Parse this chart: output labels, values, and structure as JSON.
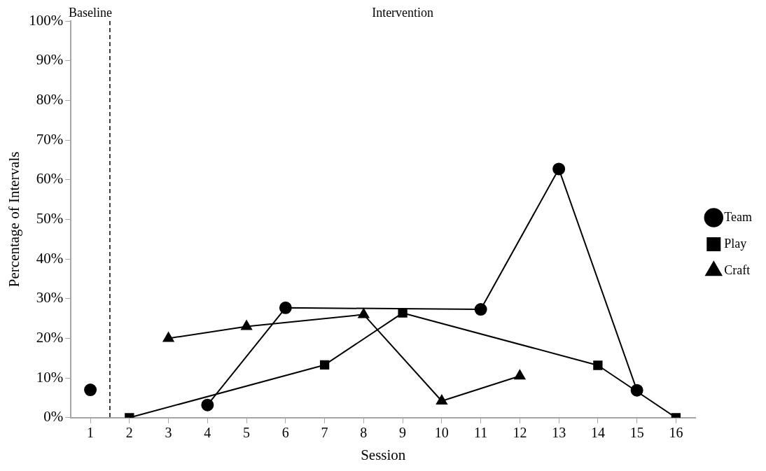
{
  "chart_data": {
    "type": "line",
    "xlabel": "Session",
    "ylabel": "Percentage of Intervals",
    "annotations": [
      "Baseline",
      "Intervention"
    ],
    "xlim": [
      0.5,
      16.5
    ],
    "xticks": [
      1,
      2,
      3,
      4,
      5,
      6,
      7,
      8,
      9,
      10,
      11,
      12,
      13,
      14,
      15,
      16
    ],
    "ylim": [
      0,
      100
    ],
    "yticks": [
      {
        "value": 0,
        "label": "0%"
      },
      {
        "value": 10,
        "label": "10%"
      },
      {
        "value": 20,
        "label": "20%"
      },
      {
        "value": 30,
        "label": "30%"
      },
      {
        "value": 40,
        "label": "40%"
      },
      {
        "value": 50,
        "label": "50%"
      },
      {
        "value": 60,
        "label": "60%"
      },
      {
        "value": 70,
        "label": "70%"
      },
      {
        "value": 80,
        "label": "80%"
      },
      {
        "value": 90,
        "label": "90%"
      },
      {
        "value": 100,
        "label": "100%"
      }
    ],
    "ref_lines": [
      {
        "axis": "x",
        "value": 1.5,
        "line_style": "dashed",
        "color": "#000000"
      }
    ],
    "grid": false,
    "legend": "right",
    "line_style": "solid",
    "series": [
      {
        "name": "Team",
        "color": "#000000",
        "marker": "circle",
        "x": [
          1,
          2,
          4,
          6,
          11,
          13,
          15
        ],
        "values": [
          7,
          null,
          3.2,
          27.7,
          27.3,
          62.7,
          6.9
        ]
      },
      {
        "name": "Play",
        "color": "#000000",
        "marker": "square",
        "x": [
          2,
          7,
          9,
          14,
          16
        ],
        "values": [
          0,
          13.3,
          26.4,
          13.2,
          0
        ]
      },
      {
        "name": "Craft",
        "color": "#000000",
        "marker": "triangle",
        "x": [
          3,
          5,
          8,
          10,
          12
        ],
        "values": [
          20,
          23,
          26,
          4.2,
          10.5
        ]
      }
    ]
  }
}
